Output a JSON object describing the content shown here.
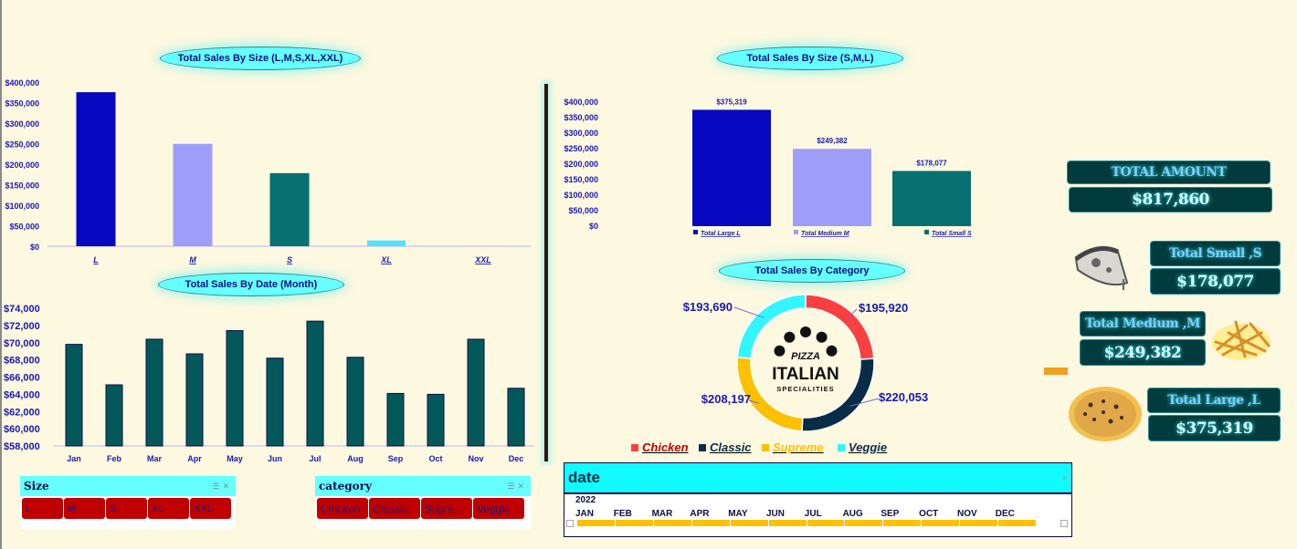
{
  "titles": {
    "size_all": "Total Sales By Size (L,M,S,XL,XXL)",
    "month": "Total Sales By Date (Month)",
    "size_sml": "Total Sales By Size (S,M,L)",
    "category": "Total Sales By Category"
  },
  "colors": {
    "background": "#fdf8e0",
    "large": "#0808c0",
    "medium": "#9e9ef8",
    "small": "#077070",
    "xl": "#55e0ff",
    "month_bar": "#03595a",
    "chicken": "#f94040",
    "classic": "#0a2d47",
    "supreme": "#ffc000",
    "veggie": "#33f5ff"
  },
  "chart_data": [
    {
      "type": "bar",
      "title": "Total Sales By Size (L,M,S,XL,XXL)",
      "categories": [
        "L",
        "M",
        "S",
        "XL",
        "XXL"
      ],
      "values": [
        375319,
        249382,
        178077,
        14076,
        1006
      ],
      "ylim": [
        0,
        400000
      ],
      "yticks": [
        "$400,000",
        "$350,000",
        "$300,000",
        "$250,000",
        "$200,000",
        "$150,000",
        "$100,000",
        "$50,000",
        "$0"
      ],
      "grid": false
    },
    {
      "type": "bar",
      "title": "Total Sales By Date (Month)",
      "categories": [
        "Jan",
        "Feb",
        "Mar",
        "Apr",
        "May",
        "Jun",
        "Jul",
        "Aug",
        "Sep",
        "Oct",
        "Nov",
        "Dec"
      ],
      "values": [
        69800,
        65100,
        70400,
        68700,
        71400,
        68200,
        72500,
        68300,
        64100,
        64000,
        70400,
        64700
      ],
      "ylim": [
        58000,
        74000
      ],
      "yticks": [
        "$74,000",
        "$72,000",
        "$70,000",
        "$68,000",
        "$66,000",
        "$64,000",
        "$62,000",
        "$60,000",
        "$58,000"
      ],
      "grid": false
    },
    {
      "type": "bar",
      "title": "Total Sales By Size (S,M,L)",
      "categories": [
        "Total Large L",
        "Total Medium M",
        "Total Small S"
      ],
      "values": [
        375319,
        249382,
        178077
      ],
      "data_labels": [
        "$375,319",
        "$249,382",
        "$178,077"
      ],
      "ylim": [
        0,
        400000
      ],
      "yticks": [
        "$400,000",
        "$350,000",
        "$300,000",
        "$250,000",
        "$200,000",
        "$150,000",
        "$100,000",
        "$50,000",
        "$0"
      ],
      "legend": "bottom",
      "grid": false
    },
    {
      "type": "pie",
      "title": "Total Sales By Category",
      "categories": [
        "Chicken",
        "Classic",
        "Supreme",
        "Veggie"
      ],
      "values": [
        195920,
        220053,
        208197,
        193690
      ],
      "data_labels": [
        "$195,920",
        "$220,053",
        "$208,197",
        "$193,690"
      ],
      "donut": true,
      "center_logo": {
        "line1": "PIZZA",
        "line2": "ITALIAN",
        "line3": "SPECIALITIES"
      },
      "legend": "bottom"
    }
  ],
  "slicers": {
    "size": {
      "title": "Size",
      "items": [
        "L",
        "M",
        "S",
        "XL",
        "XXL"
      ]
    },
    "category": {
      "title": "category",
      "items": [
        "Chicken",
        "Classic",
        "Supre...",
        "Veggie"
      ]
    }
  },
  "timeline": {
    "title": "date",
    "year": "2022",
    "months": [
      "JAN",
      "FEB",
      "MAR",
      "APR",
      "MAY",
      "JUN",
      "JUL",
      "AUG",
      "SEP",
      "OCT",
      "NOV",
      "DEC"
    ]
  },
  "kpis": {
    "total_label": "TOTAL AMOUNT",
    "total_value": "$817,860",
    "small_label": "Total Small ,S",
    "small_value": "$178,077",
    "medium_label": "Total Medium ,M",
    "medium_value": "$249,382",
    "large_label": "Total Large ,L",
    "large_value": "$375,319"
  }
}
